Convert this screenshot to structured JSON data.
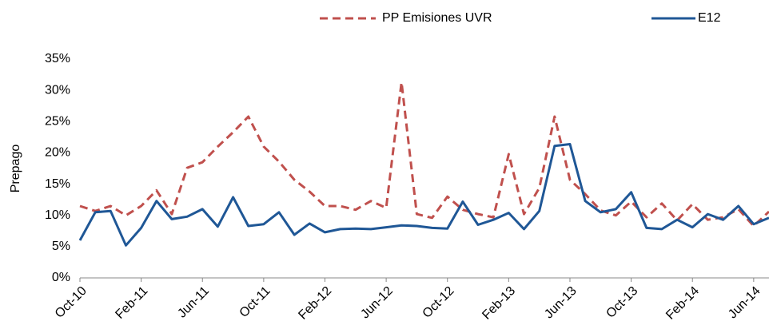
{
  "chart_data": {
    "type": "line",
    "y_label": "Prepago",
    "categories": [
      "Oct-10",
      null,
      null,
      null,
      "Feb-11",
      null,
      null,
      null,
      "Jun-11",
      null,
      null,
      null,
      "Oct-11",
      null,
      null,
      null,
      "Feb-12",
      null,
      null,
      null,
      "Jun-12",
      null,
      null,
      null,
      "Oct-12",
      null,
      null,
      null,
      "Feb-13",
      null,
      null,
      null,
      "Jun-13",
      null,
      null,
      null,
      "Oct-13",
      null,
      null,
      null,
      "Feb-14",
      null,
      null,
      null,
      "Jun-14",
      null
    ],
    "series": [
      {
        "name": "PP Emisiones UVR",
        "color": "#c0504d",
        "dashed": true,
        "values": [
          11.5,
          10.7,
          11.5,
          10,
          11.5,
          14,
          10.2,
          17.6,
          18.5,
          21,
          23.3,
          25.8,
          21,
          18.6,
          15.7,
          13.8,
          11.5,
          11.5,
          10.9,
          12.3,
          11.2,
          31.3,
          10.2,
          9.6,
          13,
          10.9,
          10.2,
          9.7,
          19.8,
          10.2,
          14.4,
          25.8,
          15.7,
          13.4,
          10.8,
          10,
          12.2,
          9.7,
          11.9,
          9.2,
          11.8,
          9.3,
          9.7,
          11,
          8.3,
          10.6
        ]
      },
      {
        "name": "E12",
        "color": "#1f5796",
        "dashed": false,
        "values": [
          6,
          10.5,
          10.7,
          5.2,
          8,
          12.3,
          9.4,
          9.8,
          11,
          8.2,
          12.9,
          8.3,
          8.6,
          10.5,
          6.9,
          8.7,
          7.3,
          7.8,
          7.9,
          7.8,
          8.1,
          8.4,
          8.3,
          8,
          7.9,
          12.2,
          8.5,
          9.3,
          10.4,
          7.8,
          10.7,
          21.1,
          21.4,
          12.3,
          10.5,
          11,
          13.7,
          8,
          7.8,
          9.3,
          8.1,
          10.2,
          9.3,
          11.5,
          8.6,
          9.6
        ]
      }
    ],
    "ylim": [
      0,
      35
    ],
    "yticks": [
      {
        "value": 0,
        "label": "0%"
      },
      {
        "value": 5,
        "label": "5%"
      },
      {
        "value": 10,
        "label": "10%"
      },
      {
        "value": 15,
        "label": "15%"
      },
      {
        "value": 20,
        "label": "20%"
      },
      {
        "value": 25,
        "label": "25%"
      },
      {
        "value": 30,
        "label": "30%"
      },
      {
        "value": 35,
        "label": "35%"
      }
    ],
    "grid": false,
    "legend": "top"
  }
}
